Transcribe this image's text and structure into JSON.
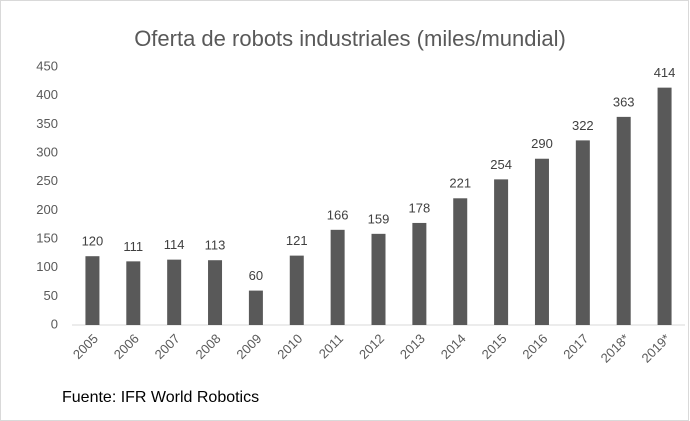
{
  "chart_data": {
    "type": "bar",
    "title": "Oferta de robots industriales (miles/mundial)",
    "categories": [
      "2005",
      "2006",
      "2007",
      "2008",
      "2009",
      "2010",
      "2011",
      "2012",
      "2013",
      "2014",
      "2015",
      "2016",
      "2017",
      "2018*",
      "2019*"
    ],
    "values": [
      120,
      111,
      114,
      113,
      60,
      121,
      166,
      159,
      178,
      221,
      254,
      290,
      322,
      363,
      414
    ],
    "color": "#595959",
    "ylim": [
      0,
      450
    ],
    "yticks": [
      0,
      50,
      100,
      150,
      200,
      250,
      300,
      350,
      400,
      450
    ],
    "grid": false,
    "source": "Fuente: IFR World Robotics"
  }
}
